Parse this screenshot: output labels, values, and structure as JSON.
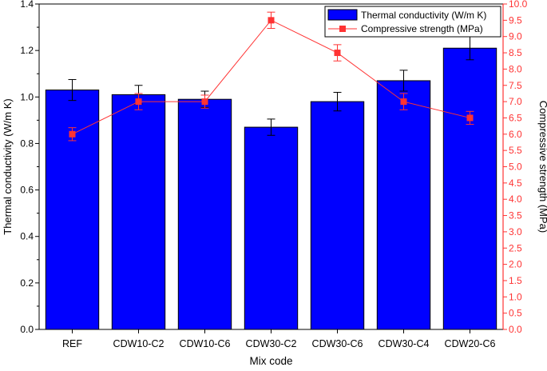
{
  "chart_data": {
    "type": "bar+line",
    "title": "",
    "xlabel": "Mix code",
    "categories": [
      "REF",
      "CDW10-C2",
      "CDW10-C6",
      "CDW30-C2",
      "CDW30-C6",
      "CDW30-C4",
      "CDW20-C6"
    ],
    "left_axis": {
      "label": "Thermal conductivity (W/m K)",
      "ylim": [
        0.0,
        1.4
      ],
      "ticks": [
        "0.0",
        "0.2",
        "0.4",
        "0.6",
        "0.8",
        "1.0",
        "1.2",
        "1.4"
      ]
    },
    "right_axis": {
      "label": "Compressive strength (MPa)",
      "ylim": [
        0.0,
        10.0
      ],
      "ticks": [
        "0.0",
        "0.5",
        "1.0",
        "1.5",
        "2.0",
        "2.5",
        "3.0",
        "3.5",
        "4.0",
        "4.5",
        "5.0",
        "5.5",
        "6.0",
        "6.5",
        "7.0",
        "7.5",
        "8.0",
        "8.5",
        "9.0",
        "9.5",
        "10.0"
      ],
      "color": "#ff3333"
    },
    "series": [
      {
        "name": "Thermal conductivity (W/m K)",
        "type": "bar",
        "axis": "left",
        "color": "#0000ff",
        "values": [
          1.03,
          1.01,
          0.99,
          0.87,
          0.98,
          1.07,
          1.21
        ],
        "errors": [
          0.045,
          0.04,
          0.035,
          0.035,
          0.04,
          0.045,
          0.05
        ]
      },
      {
        "name": "Compressive strength (MPa)",
        "type": "line",
        "axis": "right",
        "color": "#ff3333",
        "values": [
          6.0,
          7.0,
          7.0,
          9.5,
          8.5,
          7.0,
          6.5
        ],
        "errors": [
          0.2,
          0.25,
          0.2,
          0.25,
          0.25,
          0.25,
          0.2
        ]
      }
    ],
    "legend": "top-right"
  }
}
